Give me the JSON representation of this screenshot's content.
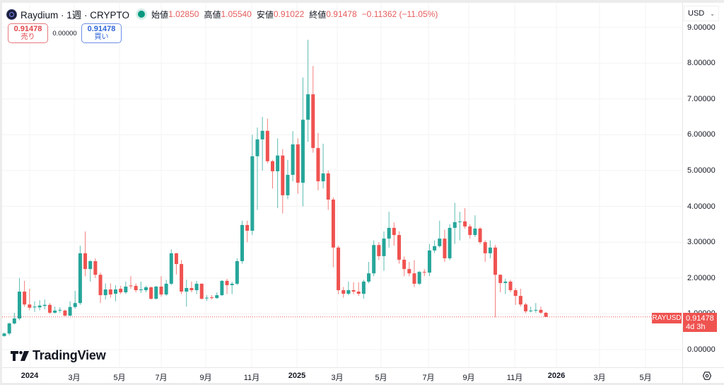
{
  "header": {
    "symbol_name": "Raydium",
    "interval": "1週",
    "exchange": "CRYPTO",
    "title": "Raydium · 1週 · CRYPTO",
    "market_status": "open",
    "ohlc": {
      "open_label": "始値",
      "open": "1.02850",
      "high_label": "高値",
      "high": "1.05540",
      "low_label": "安値",
      "low": "0.91022",
      "close_label": "終値",
      "close": "0.91478",
      "change": "−0.11362 (−11.05%)"
    }
  },
  "trade": {
    "sell_price": "0.91478",
    "sell_label": "売り",
    "spread": "0.00000",
    "buy_price": "0.91478",
    "buy_label": "買い"
  },
  "currency_selector": {
    "value": "USD",
    "icon": "chevron-down-icon"
  },
  "last_price_marker": {
    "symbol": "RAYUSD",
    "price": "0.91478",
    "countdown": "4d 3h"
  },
  "watermark": {
    "text": "TradingView",
    "icon": "tradingview-logo-icon"
  },
  "settings_icon": "gear-icon",
  "colors": {
    "up": "#26a69a",
    "down": "#ef5350",
    "price_line": "#ef5350",
    "grid": "#f3f3f3"
  },
  "chart_data": {
    "type": "candlestick",
    "title": "Raydium · 1週 · CRYPTO (RAYUSD)",
    "xlabel": "",
    "ylabel": "USD",
    "ylim": [
      0,
      9
    ],
    "y_ticks": [
      "9.00000",
      "8.00000",
      "7.00000",
      "6.00000",
      "5.00000",
      "4.00000",
      "3.00000",
      "2.00000",
      "1.00000",
      "0.00000"
    ],
    "x_ticks": [
      {
        "label": "2024",
        "bold": true,
        "x": 42
      },
      {
        "label": "3月",
        "bold": false,
        "x": 105
      },
      {
        "label": "5月",
        "bold": false,
        "x": 169
      },
      {
        "label": "7月",
        "bold": false,
        "x": 228
      },
      {
        "label": "9月",
        "bold": false,
        "x": 291
      },
      {
        "label": "11月",
        "bold": false,
        "x": 356
      },
      {
        "label": "2025",
        "bold": true,
        "x": 420
      },
      {
        "label": "3月",
        "bold": false,
        "x": 477
      },
      {
        "label": "5月",
        "bold": false,
        "x": 539
      },
      {
        "label": "7月",
        "bold": false,
        "x": 606
      },
      {
        "label": "9月",
        "bold": false,
        "x": 663
      },
      {
        "label": "11月",
        "bold": false,
        "x": 728
      },
      {
        "label": "2026",
        "bold": true,
        "x": 787
      },
      {
        "label": "3月",
        "bold": false,
        "x": 848
      },
      {
        "label": "5月",
        "bold": false,
        "x": 913
      }
    ],
    "grid": true,
    "last_price": 0.91478,
    "candle_fields": [
      "open",
      "high",
      "low",
      "close"
    ],
    "candles": [
      [
        0.38,
        0.48,
        0.36,
        0.45
      ],
      [
        0.45,
        0.76,
        0.4,
        0.73
      ],
      [
        0.73,
        1.03,
        0.7,
        0.87
      ],
      [
        0.87,
        2.0,
        0.82,
        1.62
      ],
      [
        1.62,
        1.92,
        1.2,
        1.26
      ],
      [
        1.26,
        1.7,
        1.1,
        1.17
      ],
      [
        1.18,
        1.35,
        1.05,
        1.2
      ],
      [
        1.18,
        1.38,
        1.1,
        1.23
      ],
      [
        1.22,
        1.4,
        1.12,
        1.25
      ],
      [
        1.25,
        1.3,
        1.0,
        1.03
      ],
      [
        1.03,
        1.2,
        1.01,
        1.09
      ],
      [
        1.1,
        1.18,
        1.03,
        1.11
      ],
      [
        1.09,
        1.12,
        0.92,
        0.95
      ],
      [
        0.95,
        1.35,
        0.93,
        1.19
      ],
      [
        1.19,
        1.64,
        1.15,
        1.3
      ],
      [
        1.3,
        2.9,
        1.25,
        2.69
      ],
      [
        2.69,
        3.3,
        2.05,
        2.25
      ],
      [
        2.25,
        2.5,
        1.9,
        2.47
      ],
      [
        2.47,
        2.55,
        2.0,
        2.09
      ],
      [
        2.09,
        2.15,
        1.3,
        1.52
      ],
      [
        1.52,
        1.85,
        1.4,
        1.68
      ],
      [
        1.68,
        1.85,
        1.45,
        1.54
      ],
      [
        1.56,
        1.8,
        1.35,
        1.68
      ],
      [
        1.7,
        1.78,
        1.55,
        1.6
      ],
      [
        1.6,
        1.9,
        1.55,
        1.76
      ],
      [
        1.79,
        2.05,
        1.7,
        1.78
      ],
      [
        1.78,
        1.85,
        1.6,
        1.66
      ],
      [
        1.66,
        1.9,
        1.58,
        1.68
      ],
      [
        1.66,
        1.78,
        1.6,
        1.74
      ],
      [
        1.74,
        1.76,
        1.4,
        1.42
      ],
      [
        1.42,
        1.78,
        1.4,
        1.76
      ],
      [
        1.76,
        2.05,
        1.48,
        1.54
      ],
      [
        1.54,
        1.95,
        1.5,
        1.84
      ],
      [
        1.84,
        2.8,
        1.8,
        2.69
      ],
      [
        2.69,
        2.7,
        2.1,
        2.39
      ],
      [
        2.39,
        2.5,
        1.55,
        1.62
      ],
      [
        1.62,
        1.95,
        1.2,
        1.72
      ],
      [
        1.72,
        1.9,
        1.6,
        1.66
      ],
      [
        1.66,
        1.92,
        1.55,
        1.84
      ],
      [
        1.84,
        1.85,
        1.4,
        1.42
      ],
      [
        1.44,
        1.52,
        1.36,
        1.45
      ],
      [
        1.46,
        1.52,
        1.4,
        1.44
      ],
      [
        1.44,
        1.6,
        1.42,
        1.52
      ],
      [
        1.52,
        1.94,
        1.5,
        1.92
      ],
      [
        1.92,
        1.98,
        1.55,
        1.8
      ],
      [
        1.8,
        1.9,
        1.55,
        1.84
      ],
      [
        1.84,
        2.55,
        1.8,
        2.47
      ],
      [
        2.47,
        3.6,
        2.4,
        3.48
      ],
      [
        3.48,
        3.6,
        3.0,
        3.32
      ],
      [
        3.32,
        6.0,
        3.2,
        5.4
      ],
      [
        5.4,
        6.2,
        3.9,
        5.87
      ],
      [
        5.87,
        6.5,
        5.0,
        6.11
      ],
      [
        6.11,
        6.45,
        5.2,
        5.26
      ],
      [
        5.26,
        5.3,
        4.5,
        4.98
      ],
      [
        4.98,
        5.9,
        3.95,
        5.42
      ],
      [
        5.42,
        5.6,
        3.8,
        4.31
      ],
      [
        4.31,
        5.3,
        4.2,
        4.88
      ],
      [
        4.88,
        6.1,
        4.7,
        5.73
      ],
      [
        5.73,
        5.9,
        4.35,
        4.66
      ],
      [
        4.66,
        7.6,
        4.0,
        6.42
      ],
      [
        6.42,
        8.65,
        5.8,
        7.13
      ],
      [
        7.13,
        7.92,
        5.5,
        5.63
      ],
      [
        5.63,
        6.05,
        4.45,
        4.7
      ],
      [
        4.7,
        5.75,
        4.5,
        4.92
      ],
      [
        4.92,
        5.0,
        3.9,
        4.19
      ],
      [
        4.19,
        4.25,
        2.3,
        2.85
      ],
      [
        2.85,
        2.9,
        1.55,
        1.66
      ],
      [
        1.66,
        1.75,
        1.45,
        1.56
      ],
      [
        1.56,
        1.9,
        1.52,
        1.66
      ],
      [
        1.66,
        1.88,
        1.55,
        1.62
      ],
      [
        1.62,
        1.88,
        1.5,
        1.56
      ],
      [
        1.56,
        1.95,
        1.42,
        1.9
      ],
      [
        1.9,
        2.45,
        1.85,
        2.13
      ],
      [
        2.13,
        3.05,
        2.05,
        2.92
      ],
      [
        2.92,
        3.0,
        2.5,
        2.61
      ],
      [
        2.61,
        3.3,
        2.2,
        3.1
      ],
      [
        3.1,
        3.85,
        2.85,
        3.4
      ],
      [
        3.4,
        3.55,
        2.9,
        3.2
      ],
      [
        3.2,
        3.3,
        2.4,
        2.51
      ],
      [
        2.51,
        2.6,
        2.05,
        2.25
      ],
      [
        2.25,
        2.45,
        2.05,
        2.13
      ],
      [
        2.13,
        2.5,
        1.75,
        1.84
      ],
      [
        1.84,
        2.2,
        1.8,
        2.17
      ],
      [
        2.17,
        2.25,
        2.05,
        2.15
      ],
      [
        2.15,
        2.95,
        2.05,
        2.77
      ],
      [
        2.77,
        3.05,
        2.7,
        2.89
      ],
      [
        2.89,
        3.6,
        2.85,
        3.1
      ],
      [
        3.1,
        3.35,
        2.45,
        2.55
      ],
      [
        2.55,
        3.5,
        2.5,
        3.4
      ],
      [
        3.4,
        4.1,
        2.95,
        3.56
      ],
      [
        3.56,
        3.85,
        3.05,
        3.58
      ],
      [
        3.58,
        3.95,
        3.38,
        3.44
      ],
      [
        3.44,
        3.5,
        3.1,
        3.2
      ],
      [
        3.2,
        3.75,
        3.15,
        3.38
      ],
      [
        3.38,
        3.42,
        2.95,
        3.0
      ],
      [
        3.0,
        3.05,
        2.45,
        2.69
      ],
      [
        2.69,
        3.05,
        2.55,
        2.85
      ],
      [
        2.85,
        2.92,
        0.9,
        2.09
      ],
      [
        2.09,
        2.1,
        1.6,
        1.86
      ],
      [
        1.86,
        1.98,
        1.55,
        1.9
      ],
      [
        1.9,
        1.95,
        1.6,
        1.66
      ],
      [
        1.66,
        1.72,
        1.25,
        1.5
      ],
      [
        1.5,
        1.7,
        1.2,
        1.26
      ],
      [
        1.26,
        1.3,
        1.02,
        1.07
      ],
      [
        1.07,
        1.2,
        1.04,
        1.09
      ],
      [
        1.09,
        1.3,
        1.03,
        1.11
      ],
      [
        1.11,
        1.2,
        1.0,
        1.03
      ],
      [
        1.0285,
        1.0554,
        0.91022,
        0.91478
      ]
    ]
  }
}
